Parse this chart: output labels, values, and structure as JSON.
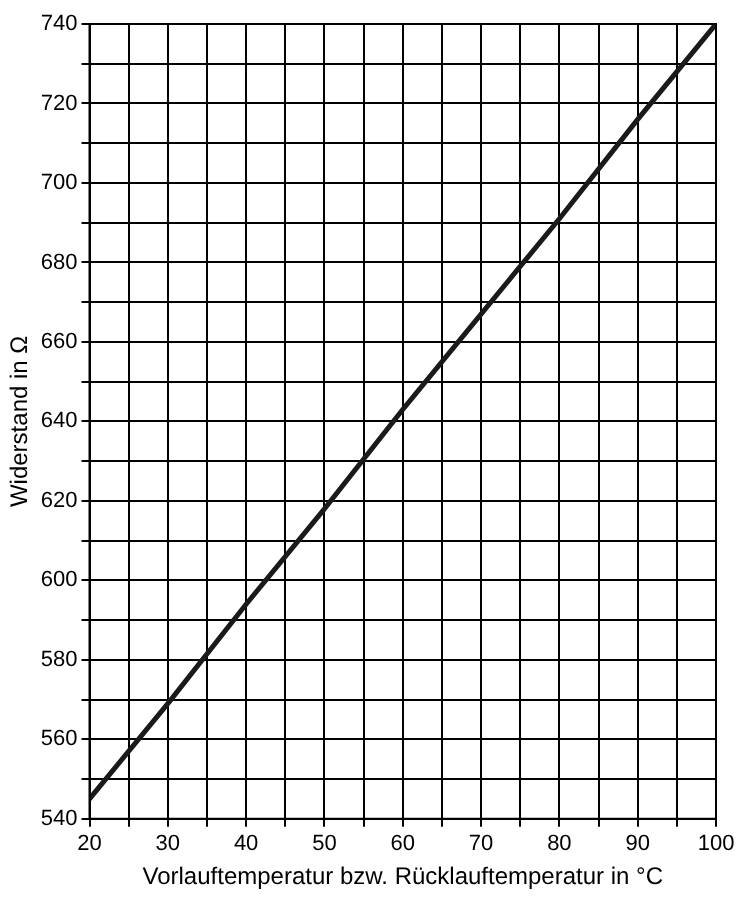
{
  "chart_data": {
    "type": "line",
    "xlabel": "Vorlauftemperatur bzw. Rücklauftemperatur in °C",
    "ylabel": "Widerstand in Ω",
    "x": [
      20,
      30,
      40,
      50,
      60,
      70,
      80,
      90,
      100
    ],
    "series": [
      {
        "color": "#1a1a1a",
        "values": [
          545,
          569,
          594,
          618,
          643,
          667,
          691,
          716,
          740
        ]
      }
    ],
    "xlim": [
      20,
      100
    ],
    "ylim": [
      540,
      740
    ],
    "xticks": [
      20,
      {
        "value": 25,
        "label": null
      },
      30,
      {
        "value": 35,
        "label": null
      },
      40,
      {
        "value": 45,
        "label": null
      },
      50,
      {
        "value": 55,
        "label": null
      },
      60,
      {
        "value": 65,
        "label": null
      },
      70,
      {
        "value": 75,
        "label": null
      },
      80,
      {
        "value": 85,
        "label": null
      },
      90,
      {
        "value": 95,
        "label": null
      },
      100
    ],
    "yticks": [
      540,
      {
        "value": 550,
        "label": null
      },
      560,
      {
        "value": 570,
        "label": null
      },
      580,
      {
        "value": 590,
        "label": null
      },
      600,
      {
        "value": 610,
        "label": null
      },
      620,
      {
        "value": 630,
        "label": null
      },
      640,
      {
        "value": 650,
        "label": null
      },
      660,
      {
        "value": 670,
        "label": null
      },
      680,
      {
        "value": 690,
        "label": null
      },
      700,
      {
        "value": 710,
        "label": null
      },
      720,
      {
        "value": 730,
        "label": null
      },
      740
    ],
    "grid": true,
    "legend": false,
    "marker": "none",
    "line_style": "solid"
  }
}
